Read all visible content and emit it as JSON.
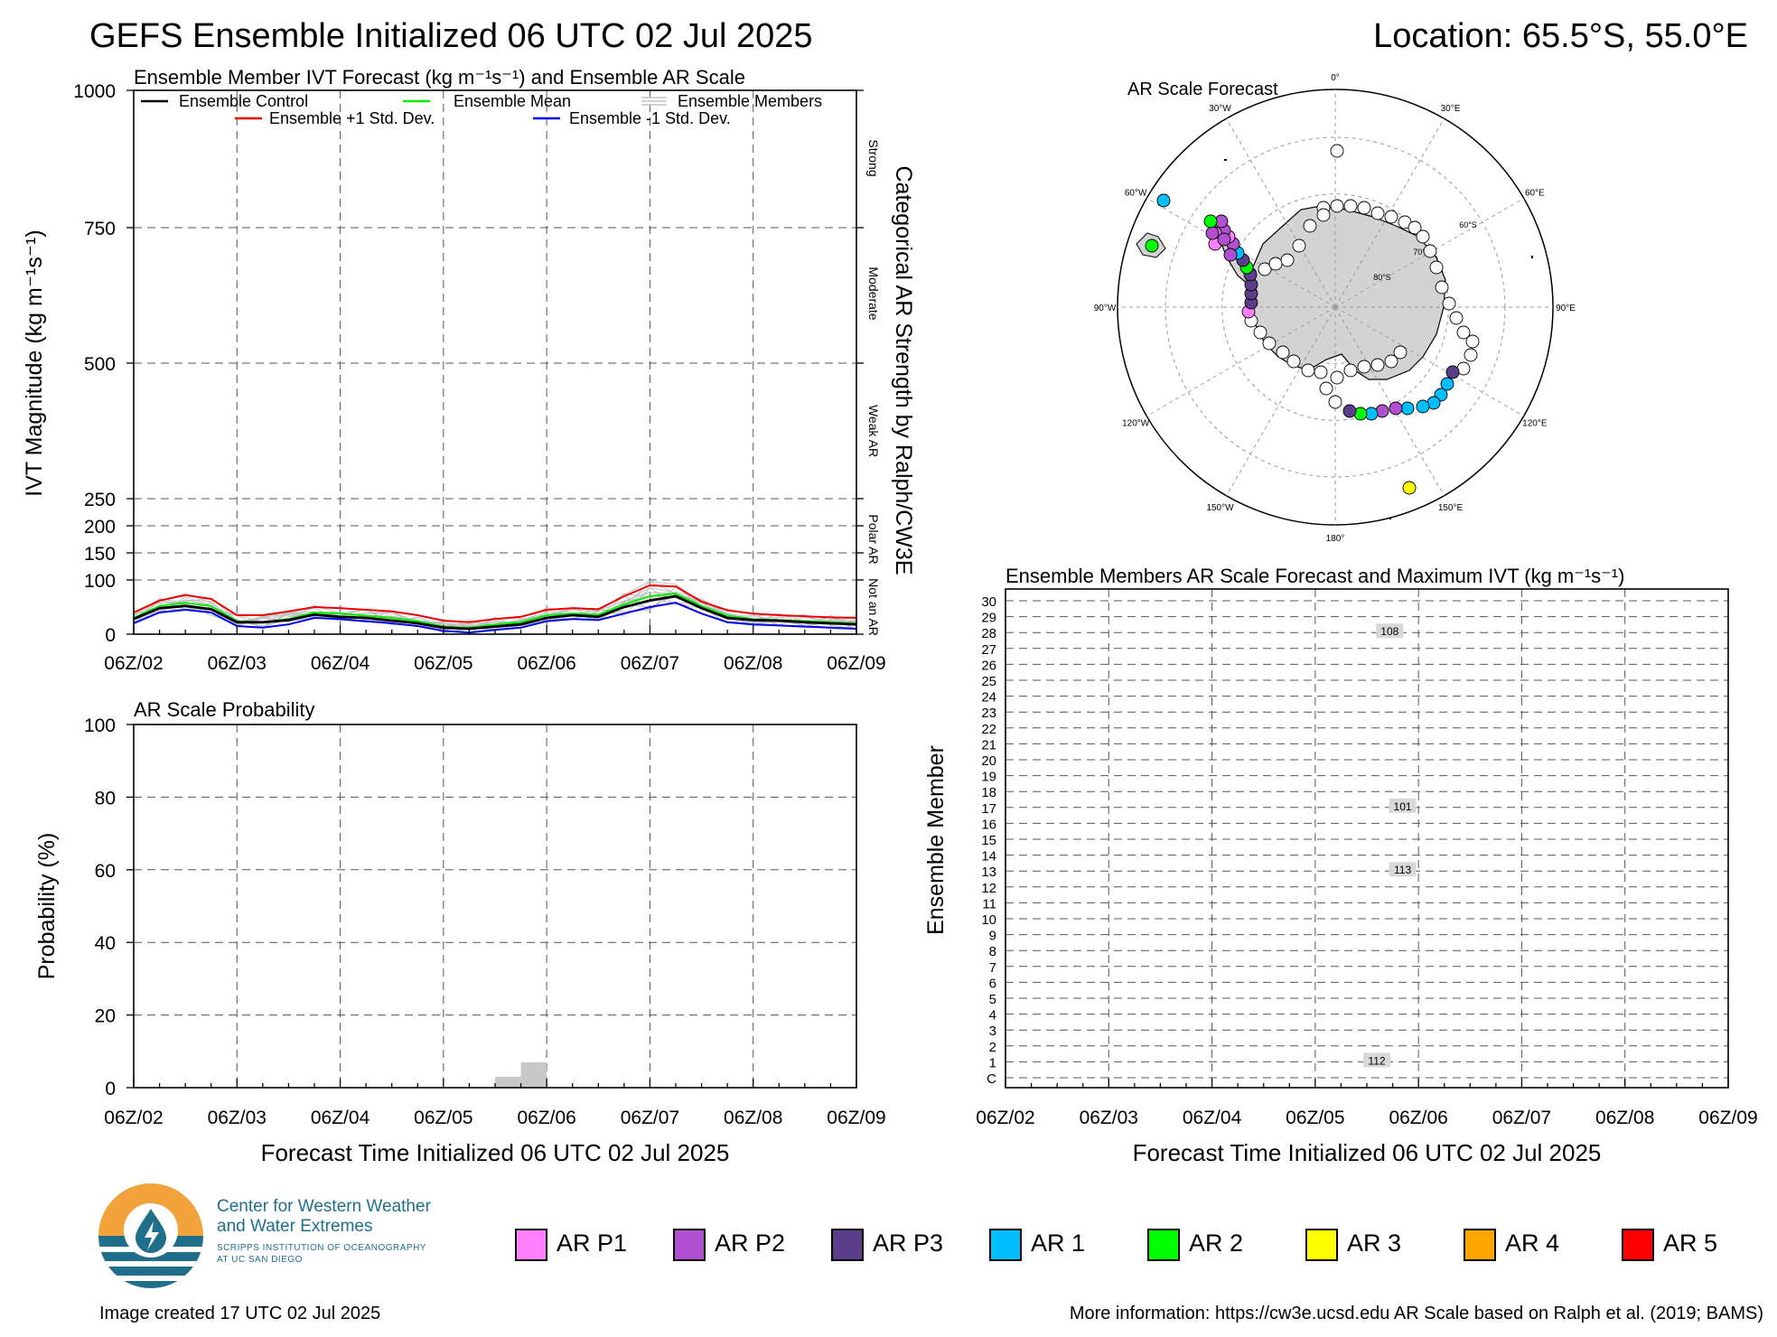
{
  "header": {
    "title": "GEFS Ensemble Initialized 06 UTC 02 Jul 2025",
    "location": "Location: 65.5°S, 55.0°E"
  },
  "colors": {
    "control": "#000000",
    "mean": "#00ee00",
    "members": "#c0c0c0",
    "plus_std": "#ee0000",
    "minus_std": "#0000ee",
    "ar_p1": "#ff80ff",
    "ar_p2": "#b04fd0",
    "ar_p3": "#5a3e8a",
    "ar_1": "#00bfff",
    "ar_2": "#00ff00",
    "ar_3": "#ffff00",
    "ar_4": "#ffa500",
    "ar_5": "#ff0000"
  },
  "x_ticks": [
    "06Z/02",
    "06Z/03",
    "06Z/04",
    "06Z/05",
    "06Z/06",
    "06Z/07",
    "06Z/08",
    "06Z/09"
  ],
  "ivt_panel": {
    "title": "Ensemble Member IVT Forecast (kg m⁻¹s⁻¹) and Ensemble AR Scale",
    "ylabel": "IVT Magnitude (kg m⁻¹s⁻¹)",
    "right_label": "Categorical AR Strength by Ralph/CW3E",
    "yticks": [
      "0",
      "100",
      "150",
      "200",
      "250",
      "500",
      "750",
      "1000"
    ],
    "categories": [
      "Strong",
      "Moderate",
      "Weak AR",
      "Polar AR",
      "Not an AR"
    ],
    "legend": {
      "control": "Ensemble Control",
      "mean": "Ensemble Mean",
      "members": "Ensemble Members",
      "plus": "Ensemble +1 Std. Dev.",
      "minus": "Ensemble -1 Std. Dev."
    }
  },
  "prob_panel": {
    "title": "AR Scale Probability",
    "ylabel": "Probability (%)",
    "xlabel": "Forecast Time Initialized 06 UTC 02 Jul 2025",
    "yticks": [
      "0",
      "20",
      "40",
      "60",
      "80",
      "100"
    ]
  },
  "map_panel": {
    "title": "AR Scale Forecast",
    "lon_labels": [
      "0°",
      "30°E",
      "60°E",
      "90°E",
      "120°E",
      "150°E",
      "180°",
      "150°W",
      "120°W",
      "90°W",
      "60°W",
      "30°W"
    ],
    "lat_labels": [
      "60°S",
      "70°S",
      "80°S"
    ]
  },
  "member_panel": {
    "title": "Ensemble Members AR Scale Forecast and Maximum IVT (kg m⁻¹s⁻¹)",
    "ylabel": "Ensemble Member",
    "xlabel": "Forecast Time Initialized 06 UTC 02 Jul 2025",
    "rows": [
      "C",
      "1",
      "2",
      "3",
      "4",
      "5",
      "6",
      "7",
      "8",
      "9",
      "10",
      "11",
      "12",
      "13",
      "14",
      "15",
      "16",
      "17",
      "18",
      "19",
      "20",
      "21",
      "22",
      "23",
      "24",
      "25",
      "26",
      "27",
      "28",
      "29",
      "30"
    ],
    "labels": [
      {
        "member": "28",
        "value": "108"
      },
      {
        "member": "17",
        "value": "101"
      },
      {
        "member": "13",
        "value": "113"
      },
      {
        "member": "1",
        "value": "112"
      }
    ]
  },
  "legend_items": [
    {
      "label": "AR P1"
    },
    {
      "label": "AR P2"
    },
    {
      "label": "AR P3"
    },
    {
      "label": "AR 1"
    },
    {
      "label": "AR 2"
    },
    {
      "label": "AR 3"
    },
    {
      "label": "AR 4"
    },
    {
      "label": "AR 5"
    }
  ],
  "logo": {
    "line1": "Center for Western Weather",
    "line2": "and Water Extremes",
    "line3": "SCRIPPS INSTITUTION OF OCEANOGRAPHY",
    "line4": "AT UC SAN DIEGO"
  },
  "footer": {
    "created": "Image created 17 UTC 02 Jul 2025",
    "info": "More information: https://cw3e.ucsd.edu AR Scale based on Ralph et al. (2019; BAMS)"
  },
  "chart_data": [
    {
      "type": "line",
      "title": "Ensemble Member IVT Forecast (kg m⁻¹s⁻¹) and Ensemble AR Scale",
      "ylabel": "IVT Magnitude (kg m⁻¹s⁻¹)",
      "x_hours": [
        0,
        6,
        12,
        18,
        24,
        30,
        36,
        42,
        48,
        54,
        60,
        66,
        72,
        78,
        84,
        90,
        96,
        102,
        108,
        114,
        120,
        126,
        132,
        138,
        144,
        150,
        156,
        162,
        168
      ],
      "series": [
        {
          "name": "Ensemble Control",
          "values": [
            28,
            48,
            52,
            46,
            22,
            22,
            26,
            36,
            32,
            30,
            25,
            20,
            12,
            10,
            14,
            18,
            30,
            35,
            32,
            50,
            62,
            70,
            48,
            30,
            26,
            25,
            22,
            20,
            18
          ]
        },
        {
          "name": "Ensemble Mean",
          "values": [
            30,
            52,
            58,
            52,
            24,
            22,
            28,
            40,
            38,
            34,
            30,
            24,
            14,
            12,
            18,
            22,
            35,
            38,
            36,
            55,
            70,
            75,
            52,
            34,
            28,
            26,
            24,
            22,
            20
          ]
        },
        {
          "name": "Ensemble +1 Std. Dev.",
          "values": [
            40,
            62,
            72,
            65,
            35,
            35,
            42,
            50,
            48,
            45,
            42,
            35,
            25,
            22,
            28,
            32,
            45,
            48,
            46,
            70,
            90,
            88,
            60,
            44,
            38,
            35,
            33,
            31,
            30
          ]
        },
        {
          "name": "Ensemble -1 Std. Dev.",
          "values": [
            20,
            40,
            45,
            40,
            15,
            12,
            18,
            30,
            28,
            24,
            20,
            15,
            6,
            3,
            8,
            12,
            24,
            28,
            26,
            38,
            50,
            58,
            38,
            22,
            18,
            16,
            14,
            12,
            10
          ]
        }
      ],
      "ylim": [
        0,
        1000
      ]
    },
    {
      "type": "bar",
      "title": "AR Scale Probability",
      "ylabel": "Probability (%)",
      "xlabel": "Forecast Time Initialized 06 UTC 02 Jul 2025",
      "bars": [
        {
          "x_hours": 84,
          "value": 3
        },
        {
          "x_hours": 90,
          "value": 7
        }
      ],
      "ylim": [
        0,
        100
      ]
    }
  ]
}
